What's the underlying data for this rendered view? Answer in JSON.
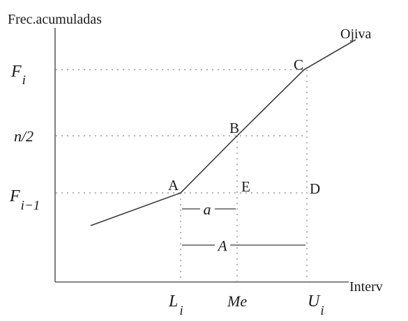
{
  "axis": {
    "y_title": "Frec.acumuladas",
    "x_title": "Interv"
  },
  "curve": {
    "name": "Ojiva"
  },
  "y_labels": {
    "fi_base": "F",
    "fi_sub": "i",
    "half": "n/2",
    "fim1_base": "F",
    "fim1_sub": "i−1"
  },
  "x_labels": {
    "li_base": "L",
    "li_sub": "i",
    "me": "Me",
    "ui_base": "U",
    "ui_sub": "i"
  },
  "points": {
    "a": "A",
    "b": "B",
    "c": "C",
    "d": "D",
    "e": "E"
  },
  "measures": {
    "small": "a",
    "large": "A"
  },
  "colors": {
    "line": "#3a3a3a",
    "dotted": "#9a9a9a",
    "text": "#1a1a1a"
  }
}
